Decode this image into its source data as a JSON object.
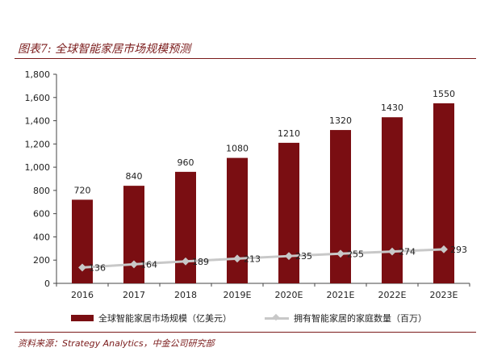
{
  "header": {
    "title": "图表7: 全球智能家居市场规模预测"
  },
  "chart_data": {
    "type": "bar",
    "categories": [
      "2016",
      "2017",
      "2018",
      "2019E",
      "2020E",
      "2021E",
      "2022E",
      "2023E"
    ],
    "series": [
      {
        "name": "全球智能家居市场规模（亿美元）",
        "type": "bar",
        "color": "#7a0e12",
        "values": [
          720,
          840,
          960,
          1080,
          1210,
          1320,
          1430,
          1550
        ]
      },
      {
        "name": "拥有智能家居的家庭数量（百万）",
        "type": "line",
        "color": "#c8c8c8",
        "values": [
          136,
          164,
          189,
          213,
          235,
          255,
          274,
          293
        ]
      }
    ],
    "ylim": [
      0,
      1800
    ],
    "yticks": [
      "0",
      "200",
      "400",
      "600",
      "800",
      "1,000",
      "1,200",
      "1,400",
      "1,600",
      "1,800"
    ],
    "legend": "bottom",
    "grid": false
  },
  "footer": {
    "source": "资料来源：Strategy Analytics，中金公司研究部"
  }
}
